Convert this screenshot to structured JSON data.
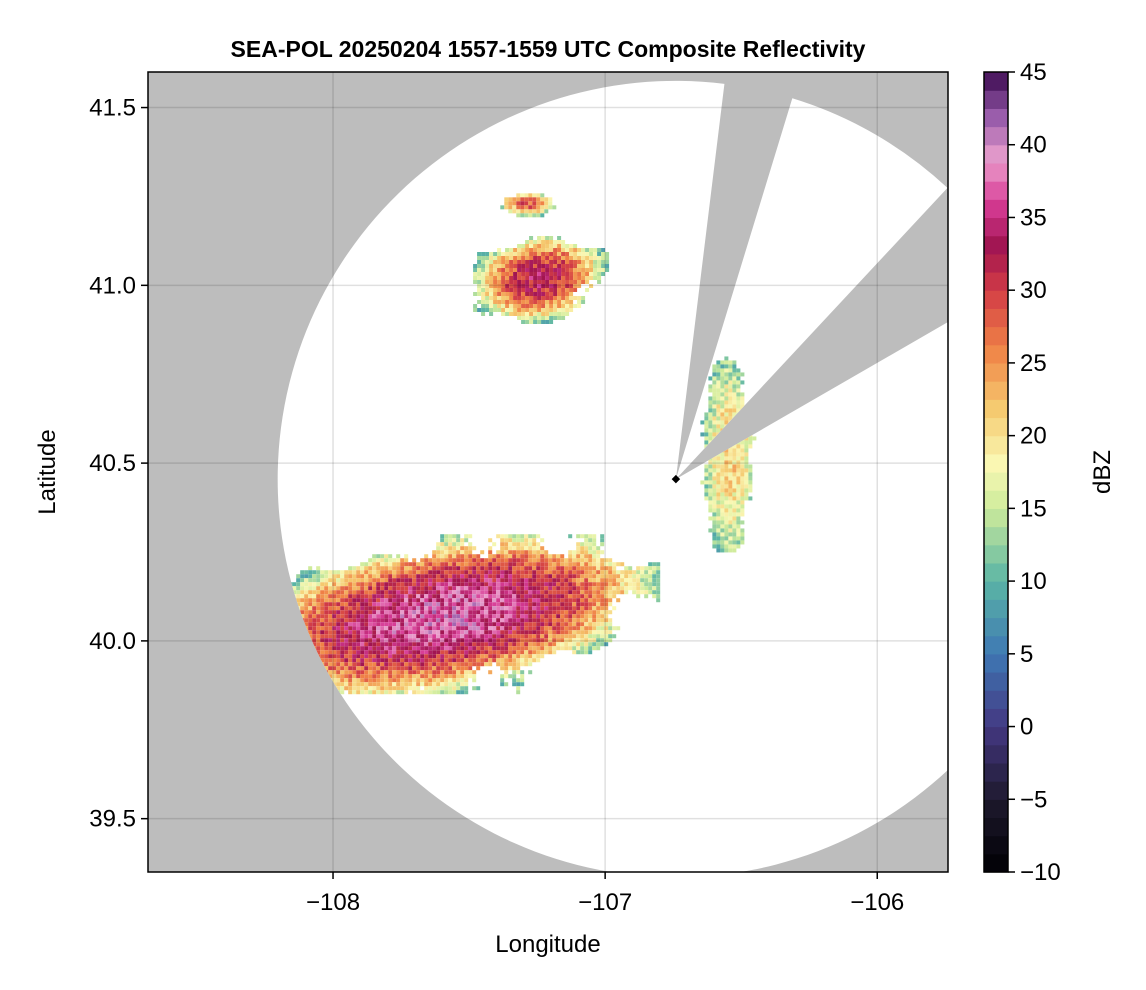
{
  "chart_data": {
    "type": "heatmap",
    "title": "SEA-POL 20250204 1557-1559 UTC Composite Reflectivity",
    "xlabel": "Longitude",
    "ylabel": "Latitude",
    "xlim": [
      -108.68,
      -105.74
    ],
    "ylim": [
      39.35,
      41.6
    ],
    "x_ticks": [
      -108,
      -107,
      -106
    ],
    "x_tick_labels": [
      "−108",
      "−107",
      "−106"
    ],
    "y_ticks": [
      39.5,
      40.0,
      40.5,
      41.0,
      41.5
    ],
    "y_tick_labels": [
      "39.5",
      "40.0",
      "40.5",
      "41.0",
      "41.5"
    ],
    "grid": true,
    "background_color": "#bdbdbd",
    "radar_coverage_color": "#ffffff",
    "radar_site": {
      "lon": -106.74,
      "lat": 40.455
    },
    "radar_coverage_radius_deg_lat": 1.12,
    "blocked_sectors_deg_from_north": [
      [
        7,
        17
      ],
      [
        43,
        60
      ]
    ],
    "colorbar": {
      "label": "dBZ",
      "range": [
        -10,
        45
      ],
      "ticks": [
        -10,
        -5,
        0,
        5,
        10,
        15,
        20,
        25,
        30,
        35,
        40,
        45
      ],
      "tick_labels": [
        "−10",
        "−5",
        "0",
        "5",
        "10",
        "15",
        "20",
        "25",
        "30",
        "35",
        "40",
        "45"
      ],
      "colormap": "Spectral_r"
    },
    "echo_regions": [
      {
        "area": "north cell",
        "lon_range": [
          -107.5,
          -107.0
        ],
        "lat_range": [
          40.9,
          41.15
        ],
        "peak_dBZ": 33
      },
      {
        "area": "north fragments",
        "lon_range": [
          -107.4,
          -107.18
        ],
        "lat_range": [
          41.2,
          41.27
        ],
        "peak_dBZ": 28
      },
      {
        "area": "main southern band",
        "lon_range": [
          -108.4,
          -106.8
        ],
        "lat_range": [
          39.85,
          40.3
        ],
        "peak_dBZ": 38
      },
      {
        "area": "isolated eastern echoes",
        "lon_range": [
          -106.65,
          -106.45
        ],
        "lat_range": [
          40.25,
          40.8
        ],
        "peak_dBZ": 21
      }
    ]
  }
}
